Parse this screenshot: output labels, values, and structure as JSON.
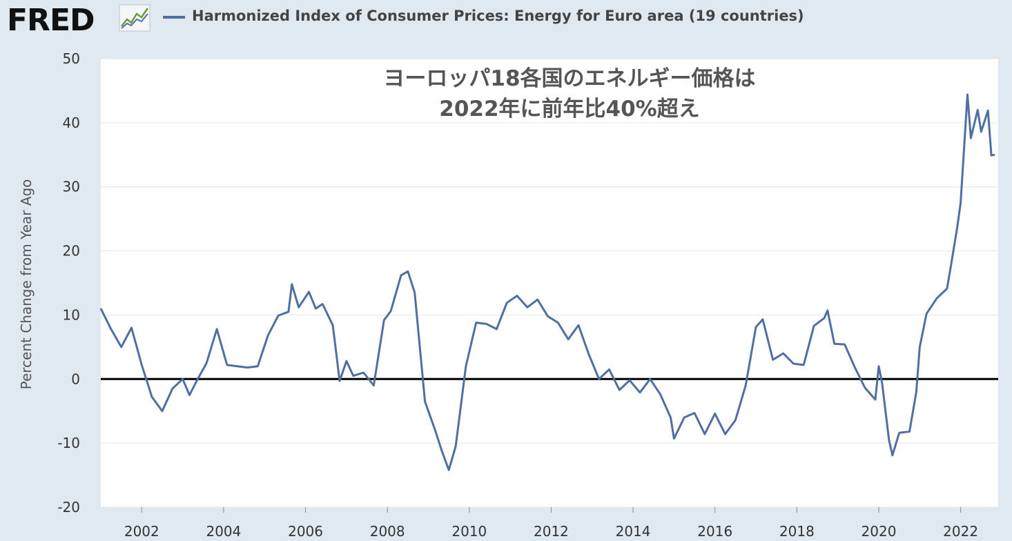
{
  "header": {
    "logo_text": "FRED",
    "logo_icon": "fred-chart-icon",
    "series_label": "Harmonized Index of Consumer Prices: Energy for Euro area (19 countries)"
  },
  "colors": {
    "background": "#e1e9f0",
    "plot_background": "#ffffff",
    "series": "#4f6fa3",
    "zero_line": "#000000"
  },
  "chart_data": {
    "type": "line",
    "title": "ヨーロッパ18各国のエネルギー価格は\n2022年に前年比40%超え",
    "xlabel": "",
    "ylabel": "Percent Change from Year Ago",
    "ylim": [
      -20,
      50
    ],
    "yticks": [
      -20,
      -10,
      0,
      10,
      20,
      30,
      40,
      50
    ],
    "xticks": [
      "2002",
      "2004",
      "2006",
      "2008",
      "2010",
      "2012",
      "2014",
      "2016",
      "2018",
      "2020",
      "2022"
    ],
    "grid": "horizontal",
    "reference_line": 0,
    "series": [
      {
        "name": "Harmonized Index of Consumer Prices: Energy for Euro area (19 countries)",
        "x": [
          "2001-01",
          "2001-04",
          "2001-07",
          "2001-10",
          "2002-01",
          "2002-04",
          "2002-07",
          "2002-10",
          "2003-01",
          "2003-03",
          "2003-05",
          "2003-08",
          "2003-11",
          "2004-02",
          "2004-05",
          "2004-08",
          "2004-11",
          "2005-02",
          "2005-05",
          "2005-08",
          "2005-09",
          "2005-11",
          "2006-02",
          "2006-04",
          "2006-06",
          "2006-09",
          "2006-11",
          "2007-01",
          "2007-03",
          "2007-06",
          "2007-09",
          "2007-12",
          "2008-02",
          "2008-05",
          "2008-07",
          "2008-09",
          "2008-12",
          "2009-03",
          "2009-05",
          "2009-07",
          "2009-09",
          "2009-12",
          "2010-03",
          "2010-06",
          "2010-09",
          "2010-12",
          "2011-03",
          "2011-06",
          "2011-09",
          "2011-12",
          "2012-03",
          "2012-06",
          "2012-09",
          "2012-12",
          "2013-03",
          "2013-06",
          "2013-09",
          "2013-12",
          "2014-03",
          "2014-06",
          "2014-09",
          "2014-12",
          "2015-01",
          "2015-04",
          "2015-07",
          "2015-10",
          "2016-01",
          "2016-04",
          "2016-07",
          "2016-10",
          "2017-01",
          "2017-03",
          "2017-06",
          "2017-09",
          "2017-12",
          "2018-03",
          "2018-06",
          "2018-09",
          "2018-10",
          "2018-12",
          "2019-03",
          "2019-06",
          "2019-09",
          "2019-12",
          "2020-01",
          "2020-02",
          "2020-04",
          "2020-05",
          "2020-07",
          "2020-10",
          "2020-12",
          "2021-01",
          "2021-03",
          "2021-06",
          "2021-09",
          "2021-10",
          "2021-12",
          "2022-01",
          "2022-03",
          "2022-04",
          "2022-06",
          "2022-07",
          "2022-09",
          "2022-10",
          "2022-11"
        ],
        "values": [
          11.0,
          7.8,
          5.0,
          8.0,
          2.2,
          -2.8,
          -5.0,
          -1.5,
          0.0,
          -2.5,
          -0.4,
          2.5,
          7.8,
          2.2,
          2.0,
          1.8,
          2.0,
          6.8,
          9.9,
          10.5,
          14.8,
          11.2,
          13.6,
          11.0,
          11.7,
          8.4,
          -0.3,
          2.8,
          0.5,
          1.0,
          -1.0,
          9.2,
          10.6,
          16.2,
          16.8,
          13.5,
          -3.5,
          -8.0,
          -11.3,
          -14.2,
          -10.5,
          2.0,
          8.8,
          8.6,
          7.8,
          11.9,
          13.0,
          11.2,
          12.4,
          9.8,
          8.8,
          6.2,
          8.4,
          3.9,
          0.0,
          1.5,
          -1.7,
          -0.2,
          -2.1,
          0.0,
          -2.4,
          -6.0,
          -9.3,
          -6.0,
          -5.3,
          -8.6,
          -5.4,
          -8.6,
          -6.4,
          -1.0,
          8.1,
          9.3,
          3.0,
          4.0,
          2.4,
          2.2,
          8.3,
          9.5,
          10.7,
          5.5,
          5.4,
          1.8,
          -1.4,
          -3.2,
          2.0,
          -0.7,
          -9.5,
          -11.9,
          -8.4,
          -8.2,
          -2.0,
          5.0,
          10.2,
          12.6,
          14.1,
          17.2,
          23.7,
          27.5,
          44.4,
          37.6,
          42.0,
          38.6,
          41.9,
          34.9,
          35.0
        ]
      }
    ]
  }
}
